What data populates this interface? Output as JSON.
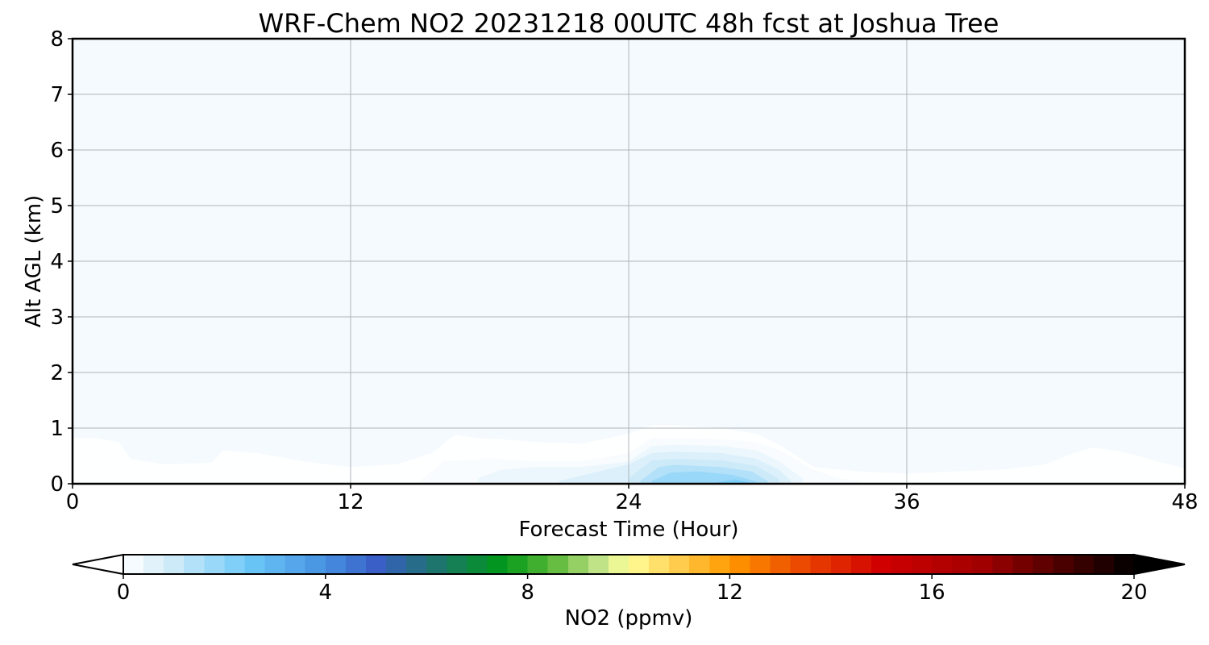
{
  "chart_data": {
    "type": "heatmap",
    "title": "WRF-Chem NO2  20231218 00UTC 48h fcst at Joshua Tree",
    "xlabel": "Forecast Time (Hour)",
    "ylabel": "Alt AGL (km)",
    "xlim": [
      0,
      48
    ],
    "ylim": [
      0,
      8
    ],
    "x_ticks": [
      0,
      12,
      24,
      36,
      48
    ],
    "y_ticks": [
      0,
      1,
      2,
      3,
      4,
      5,
      6,
      7,
      8
    ],
    "grid": true,
    "contour_levels_ppmv": [
      0.02,
      0.15,
      0.4,
      0.7,
      1.0,
      1.4,
      1.8,
      2.2
    ],
    "contours_ppmv": [
      {
        "x": [
          0,
          1,
          2,
          2.5,
          4,
          6,
          6.5,
          8,
          10,
          12,
          14,
          15.5,
          16.5,
          17.5,
          18.5,
          20,
          22,
          24,
          25,
          26,
          28,
          29.5,
          30.5,
          32,
          34,
          36,
          38,
          40,
          42,
          43,
          44,
          45,
          46,
          47,
          48
        ],
        "h": [
          0.82,
          0.82,
          0.75,
          0.45,
          0.35,
          0.38,
          0.6,
          0.55,
          0.4,
          0.3,
          0.35,
          0.55,
          0.88,
          0.82,
          0.8,
          0.75,
          0.72,
          0.9,
          1.05,
          1.05,
          1.0,
          0.9,
          0.7,
          0.3,
          0.22,
          0.18,
          0.22,
          0.25,
          0.35,
          0.52,
          0.65,
          0.6,
          0.5,
          0.38,
          0.28
        ]
      },
      {
        "x": [
          15,
          16,
          17,
          18,
          20,
          22,
          24,
          25,
          26,
          28,
          29.5,
          30.5,
          32,
          33,
          34
        ],
        "h": [
          0.05,
          0.4,
          0.42,
          0.45,
          0.4,
          0.4,
          0.55,
          0.82,
          0.82,
          0.8,
          0.75,
          0.6,
          0.25,
          0.1,
          0.05
        ]
      },
      {
        "x": [
          17.5,
          18.5,
          20,
          22,
          24,
          25,
          26,
          28,
          29.5,
          30.5,
          31.5
        ],
        "h": [
          0.1,
          0.25,
          0.3,
          0.3,
          0.4,
          0.68,
          0.7,
          0.68,
          0.6,
          0.4,
          0.1
        ]
      },
      {
        "x": [
          21,
          23,
          24,
          25,
          26,
          28,
          29.5,
          30.5,
          31
        ],
        "h": [
          0.05,
          0.25,
          0.35,
          0.55,
          0.58,
          0.55,
          0.45,
          0.25,
          0.05
        ]
      },
      {
        "x": [
          24,
          25,
          26,
          28,
          29.5,
          30.5
        ],
        "h": [
          0.1,
          0.42,
          0.45,
          0.42,
          0.32,
          0.08
        ]
      },
      {
        "x": [
          24.5,
          25.3,
          26,
          28,
          29.3,
          30
        ],
        "h": [
          0.05,
          0.3,
          0.34,
          0.3,
          0.22,
          0.05
        ]
      },
      {
        "x": [
          25,
          25.8,
          27,
          28.5,
          29.5
        ],
        "h": [
          0.05,
          0.2,
          0.22,
          0.16,
          0.04
        ]
      },
      {
        "x": [
          27.8,
          28.6,
          29.2
        ],
        "h": [
          0.02,
          0.08,
          0.02
        ]
      }
    ],
    "colorbar": {
      "label": "NO2  (ppmv)",
      "min": 0,
      "max": 20,
      "extend": "both",
      "ticks": [
        0,
        4,
        8,
        12,
        16,
        20
      ],
      "stops": [
        {
          "v": 0,
          "color": "#ffffff"
        },
        {
          "v": 1,
          "color": "#cdeaf9"
        },
        {
          "v": 2.5,
          "color": "#6cc8f8"
        },
        {
          "v": 4,
          "color": "#4590e0"
        },
        {
          "v": 5,
          "color": "#3a60c8"
        },
        {
          "v": 6,
          "color": "#22707a"
        },
        {
          "v": 7.5,
          "color": "#009818"
        },
        {
          "v": 8.5,
          "color": "#5cb838"
        },
        {
          "v": 9.5,
          "color": "#cce890"
        },
        {
          "v": 10,
          "color": "#ffff99"
        },
        {
          "v": 12,
          "color": "#ff9900"
        },
        {
          "v": 13.5,
          "color": "#ea4400"
        },
        {
          "v": 15,
          "color": "#d00000"
        },
        {
          "v": 17,
          "color": "#a00000"
        },
        {
          "v": 18.5,
          "color": "#500000"
        },
        {
          "v": 20,
          "color": "#000000"
        }
      ]
    }
  }
}
